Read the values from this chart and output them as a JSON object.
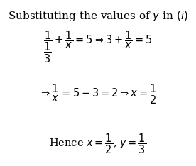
{
  "title": "Substituting the values of $y$ in $(i)$",
  "title_fontsize": 11,
  "bg_color": "#ffffff",
  "text_color": "#000000",
  "line1": "$\\dfrac{\\dfrac{1}{1}}{3} + \\dfrac{1}{x} = 5 \\Rightarrow 3 + \\dfrac{1}{x} = 5$",
  "line2": "$\\Rightarrow \\dfrac{1}{x} = 5 - 3 = 2 \\Rightarrow x = \\dfrac{1}{2}$",
  "line3": "Hence $x = \\dfrac{1}{2}$, $y = \\dfrac{1}{3}$",
  "figsize": [
    2.76,
    2.34
  ],
  "dpi": 100
}
